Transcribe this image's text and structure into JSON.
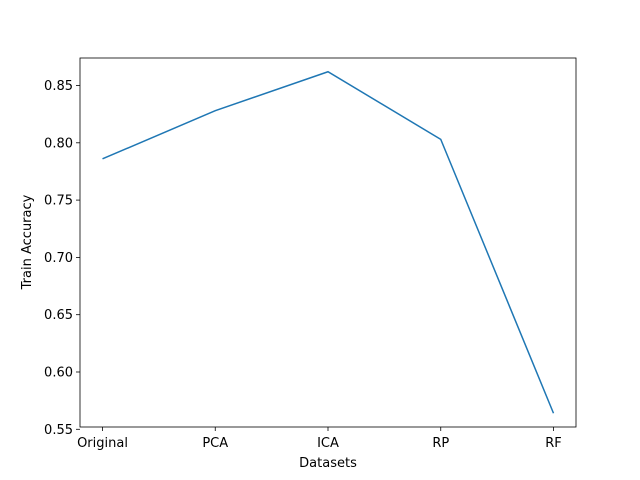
{
  "chart_data": {
    "type": "line",
    "categories": [
      "Original",
      "PCA",
      "ICA",
      "RP",
      "RF"
    ],
    "series": [
      {
        "values": [
          0.786,
          0.828,
          0.862,
          0.803,
          0.564
        ]
      }
    ],
    "xlabel": "Datasets",
    "ylabel": "Train Accuracy",
    "ylim": [
      0.552,
      0.874
    ],
    "yticks": [
      0.55,
      0.6,
      0.65,
      0.7,
      0.75,
      0.8,
      0.85
    ],
    "ytick_labels": [
      "0.55",
      "0.60",
      "0.65",
      "0.70",
      "0.75",
      "0.80",
      "0.85"
    ],
    "grid": false,
    "line_color": "#1f77b4"
  }
}
